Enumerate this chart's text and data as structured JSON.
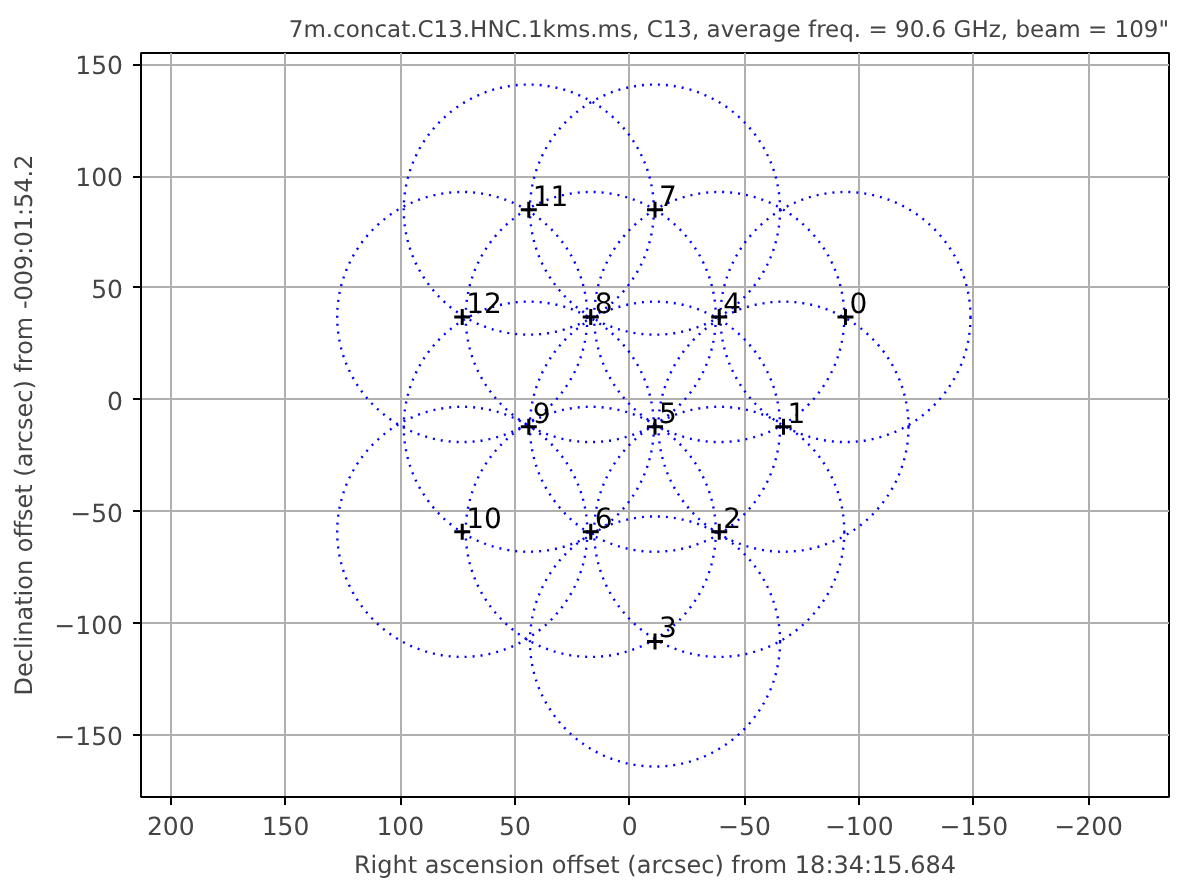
{
  "chart_data": {
    "type": "scatter",
    "title": "7m.concat.C13.HNC.1kms.ms, C13, average freq. = 90.6 GHz, beam = 109\"",
    "xlabel": "Right ascension offset (arcsec) from 18:34:15.684",
    "ylabel": "Declination offset (arcsec) from -009:01:54.2",
    "x": [
      -94,
      -67,
      -39,
      -11,
      -39,
      -11,
      17,
      -11,
      17,
      44,
      73,
      44,
      73
    ],
    "series": [
      {
        "color": "#000000",
        "values": [
          37,
          -12,
          -59,
          -108,
          37,
          -12,
          -59,
          85,
          37,
          -12,
          -59,
          85,
          37
        ]
      }
    ],
    "marker": "cross",
    "annotations": [
      {
        "text": "0",
        "x": -94,
        "y": 37
      },
      {
        "text": "1",
        "x": -67,
        "y": -12
      },
      {
        "text": "2",
        "x": -39,
        "y": -59
      },
      {
        "text": "3",
        "x": -11,
        "y": -108
      },
      {
        "text": "4",
        "x": -39,
        "y": 37
      },
      {
        "text": "5",
        "x": -11,
        "y": -12
      },
      {
        "text": "6",
        "x": 17,
        "y": -59
      },
      {
        "text": "7",
        "x": -11,
        "y": 85
      },
      {
        "text": "8",
        "x": 17,
        "y": 37
      },
      {
        "text": "9",
        "x": 44,
        "y": -12
      },
      {
        "text": "10",
        "x": 73,
        "y": -59
      },
      {
        "text": "11",
        "x": 44,
        "y": 85
      },
      {
        "text": "12",
        "x": 73,
        "y": 37
      }
    ],
    "xlim": [
      213,
      -235
    ],
    "ylim": [
      -177.5,
      155
    ],
    "xticks": [
      200,
      150,
      100,
      50,
      0,
      {
        "value": -50,
        "label": "−50"
      },
      {
        "value": -100,
        "label": "−100"
      },
      {
        "value": -150,
        "label": "−150"
      },
      {
        "value": -200,
        "label": "−200"
      }
    ],
    "yticks": [
      {
        "value": -150,
        "label": "−150"
      },
      {
        "value": -100,
        "label": "−100"
      },
      {
        "value": -50,
        "label": "−50"
      },
      0,
      50,
      100,
      150
    ],
    "grid": true
  }
}
